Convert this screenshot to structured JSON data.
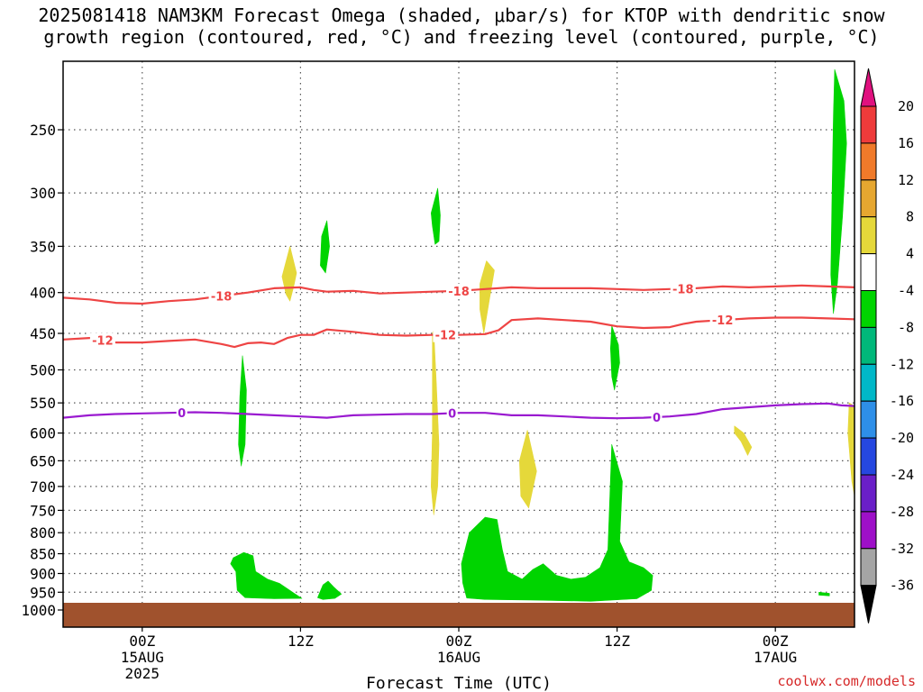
{
  "title_line1": "2025081418 NAM3KM Forecast Omega (shaded, μbar/s) for KTOP with dendritic snow",
  "title_line2": "growth region (contoured, red, °C) and freezing level (contoured, purple, °C)",
  "credit": "coolwx.com/models",
  "chart_data": {
    "type": "time-height cross section",
    "title": "2025081418 NAM3KM Forecast Omega (shaded, μbar/s) for KTOP with dendritic snow growth region (contoured, red, °C) and freezing level (contoured, purple, °C)",
    "xlabel": "Forecast Time (UTC)",
    "x_forecast_hours": [
      0,
      60
    ],
    "y_pressure_range": [
      1000,
      200
    ],
    "y_scale": "log-pressure",
    "grid": "dotted",
    "y_ticks": [
      250,
      300,
      350,
      400,
      450,
      500,
      550,
      600,
      650,
      700,
      750,
      800,
      850,
      900,
      950,
      1000
    ],
    "x_ticks": [
      {
        "hour": 6,
        "lines": [
          "00Z",
          "15AUG",
          "2025"
        ]
      },
      {
        "hour": 18,
        "lines": [
          "12Z"
        ]
      },
      {
        "hour": 30,
        "lines": [
          "00Z",
          "16AUG"
        ]
      },
      {
        "hour": 42,
        "lines": [
          "12Z"
        ]
      },
      {
        "hour": 54,
        "lines": [
          "00Z",
          "17AUG"
        ]
      }
    ],
    "colorbar": {
      "unit": "μbar/s",
      "labels": [
        "20",
        "16",
        "12",
        "8",
        "4",
        "-4",
        "-8",
        "-12",
        "-16",
        "-20",
        "-24",
        "-28",
        "-32",
        "-36"
      ],
      "colors": [
        "#e0117f",
        "#ee3b3b",
        "#f07a2a",
        "#e6a730",
        "#e5d83a",
        "#ffffff",
        "#00d400",
        "#00b87a",
        "#00b8c8",
        "#2e8fe8",
        "#2547e0",
        "#6a1fc8",
        "#9e10c8",
        "#a5a5a5",
        "#000000"
      ]
    },
    "contours": [
      {
        "label": "-18",
        "color": "#ee4444",
        "points": [
          [
            0,
            406
          ],
          [
            2,
            408
          ],
          [
            4,
            412
          ],
          [
            6,
            413
          ],
          [
            8,
            410
          ],
          [
            10,
            408
          ],
          [
            12,
            404
          ],
          [
            14,
            400
          ],
          [
            16,
            395
          ],
          [
            18,
            394
          ],
          [
            19,
            397
          ],
          [
            20,
            399
          ],
          [
            22,
            398
          ],
          [
            24,
            401
          ],
          [
            26,
            400
          ],
          [
            28,
            399
          ],
          [
            30,
            398
          ],
          [
            32,
            396
          ],
          [
            34,
            394
          ],
          [
            36,
            395
          ],
          [
            38,
            395
          ],
          [
            40,
            395
          ],
          [
            42,
            396
          ],
          [
            44,
            397
          ],
          [
            46,
            396
          ],
          [
            48,
            395
          ],
          [
            50,
            393
          ],
          [
            52,
            394
          ],
          [
            54,
            393
          ],
          [
            56,
            392
          ],
          [
            58,
            393
          ],
          [
            60,
            394
          ]
        ]
      },
      {
        "label": "-12",
        "color": "#ee4444",
        "points": [
          [
            0,
            458
          ],
          [
            2,
            456
          ],
          [
            4,
            462
          ],
          [
            6,
            462
          ],
          [
            8,
            460
          ],
          [
            10,
            458
          ],
          [
            12,
            464
          ],
          [
            13,
            468
          ],
          [
            14,
            463
          ],
          [
            15,
            462
          ],
          [
            16,
            464
          ],
          [
            17,
            456
          ],
          [
            18,
            452
          ],
          [
            19,
            452
          ],
          [
            20,
            445
          ],
          [
            22,
            448
          ],
          [
            24,
            452
          ],
          [
            26,
            453
          ],
          [
            28,
            452
          ],
          [
            30,
            452
          ],
          [
            32,
            451
          ],
          [
            33,
            446
          ],
          [
            34,
            433
          ],
          [
            36,
            431
          ],
          [
            38,
            433
          ],
          [
            40,
            435
          ],
          [
            42,
            441
          ],
          [
            44,
            443
          ],
          [
            46,
            442
          ],
          [
            47,
            438
          ],
          [
            48,
            435
          ],
          [
            50,
            433
          ],
          [
            52,
            431
          ],
          [
            54,
            430
          ],
          [
            56,
            430
          ],
          [
            58,
            431
          ],
          [
            60,
            432
          ]
        ]
      },
      {
        "label": "0",
        "color": "#9a1ad0",
        "points": [
          [
            0,
            574
          ],
          [
            2,
            570
          ],
          [
            4,
            568
          ],
          [
            6,
            567
          ],
          [
            8,
            566
          ],
          [
            10,
            565
          ],
          [
            12,
            566
          ],
          [
            14,
            568
          ],
          [
            16,
            570
          ],
          [
            18,
            572
          ],
          [
            20,
            574
          ],
          [
            22,
            570
          ],
          [
            24,
            569
          ],
          [
            26,
            568
          ],
          [
            28,
            568
          ],
          [
            30,
            566
          ],
          [
            32,
            566
          ],
          [
            34,
            570
          ],
          [
            36,
            570
          ],
          [
            38,
            572
          ],
          [
            40,
            574
          ],
          [
            42,
            575
          ],
          [
            44,
            574
          ],
          [
            46,
            572
          ],
          [
            48,
            568
          ],
          [
            50,
            560
          ],
          [
            52,
            557
          ],
          [
            54,
            554
          ],
          [
            56,
            552
          ],
          [
            58,
            551
          ],
          [
            59,
            554
          ],
          [
            60,
            555
          ]
        ]
      }
    ],
    "omega_regions": [
      {
        "color": "#00d400",
        "points": [
          [
            12.9,
            860
          ],
          [
            13.7,
            847
          ],
          [
            14.4,
            855
          ],
          [
            14.6,
            895
          ],
          [
            15.5,
            915
          ],
          [
            16.4,
            926
          ],
          [
            17.6,
            955
          ],
          [
            18.1,
            967
          ],
          [
            16.0,
            968
          ],
          [
            13.8,
            965
          ],
          [
            13.2,
            945
          ],
          [
            13.1,
            895
          ],
          [
            12.7,
            875
          ]
        ]
      },
      {
        "color": "#00d400",
        "points": [
          [
            19.3,
            965
          ],
          [
            19.7,
            930
          ],
          [
            20.1,
            920
          ],
          [
            20.5,
            935
          ],
          [
            21.1,
            955
          ],
          [
            20.6,
            967
          ],
          [
            19.7,
            970
          ]
        ]
      },
      {
        "color": "#00d400",
        "points": [
          [
            30.2,
            875
          ],
          [
            30.8,
            800
          ],
          [
            32.0,
            765
          ],
          [
            32.9,
            770
          ],
          [
            33.3,
            840
          ],
          [
            33.7,
            895
          ],
          [
            34.8,
            915
          ],
          [
            35.6,
            890
          ],
          [
            36.4,
            875
          ],
          [
            37.4,
            905
          ],
          [
            38.5,
            915
          ],
          [
            39.6,
            910
          ],
          [
            40.7,
            885
          ],
          [
            41.3,
            840
          ],
          [
            41.6,
            620
          ],
          [
            42.4,
            690
          ],
          [
            42.2,
            820
          ],
          [
            42.9,
            870
          ],
          [
            44.0,
            885
          ],
          [
            44.7,
            905
          ],
          [
            44.6,
            945
          ],
          [
            43.5,
            968
          ],
          [
            40.0,
            975
          ],
          [
            36.0,
            972
          ],
          [
            32.0,
            970
          ],
          [
            30.6,
            966
          ],
          [
            30.3,
            925
          ]
        ]
      },
      {
        "color": "#00d400",
        "points": [
          [
            13.6,
            480
          ],
          [
            13.9,
            530
          ],
          [
            13.8,
            620
          ],
          [
            13.5,
            660
          ],
          [
            13.3,
            620
          ],
          [
            13.4,
            540
          ]
        ]
      },
      {
        "color": "#00d400",
        "points": [
          [
            19.6,
            340
          ],
          [
            20.0,
            325
          ],
          [
            20.2,
            350
          ],
          [
            19.9,
            378
          ],
          [
            19.5,
            370
          ]
        ]
      },
      {
        "color": "#00d400",
        "points": [
          [
            27.9,
            318
          ],
          [
            28.4,
            296
          ],
          [
            28.6,
            320
          ],
          [
            28.5,
            345
          ],
          [
            28.2,
            348
          ],
          [
            28.0,
            330
          ]
        ]
      },
      {
        "color": "#00d400",
        "points": [
          [
            41.5,
            470
          ],
          [
            41.6,
            440
          ],
          [
            42.1,
            465
          ],
          [
            42.2,
            490
          ],
          [
            41.8,
            530
          ],
          [
            41.6,
            510
          ]
        ]
      },
      {
        "color": "#00d400",
        "points": [
          [
            58.5,
            210
          ],
          [
            59.2,
            230
          ],
          [
            59.4,
            260
          ],
          [
            59.1,
            320
          ],
          [
            58.7,
            390
          ],
          [
            58.4,
            425
          ],
          [
            58.2,
            380
          ],
          [
            58.3,
            300
          ],
          [
            58.4,
            240
          ]
        ]
      },
      {
        "color": "#00d400",
        "points": [
          [
            57.3,
            950
          ],
          [
            58.1,
            953
          ],
          [
            58.1,
            960
          ],
          [
            57.3,
            958
          ]
        ]
      },
      {
        "color": "#e5d83a",
        "points": [
          [
            16.6,
            382
          ],
          [
            17.2,
            350
          ],
          [
            17.7,
            378
          ],
          [
            17.5,
            392
          ],
          [
            17.2,
            410
          ],
          [
            16.9,
            402
          ]
        ]
      },
      {
        "color": "#e5d83a",
        "points": [
          [
            28.0,
            450
          ],
          [
            28.1,
            445
          ],
          [
            28.3,
            520
          ],
          [
            28.5,
            620
          ],
          [
            28.4,
            700
          ],
          [
            28.1,
            760
          ],
          [
            27.9,
            700
          ],
          [
            28.0,
            600
          ]
        ]
      },
      {
        "color": "#e5d83a",
        "points": [
          [
            31.6,
            390
          ],
          [
            32.1,
            365
          ],
          [
            32.7,
            375
          ],
          [
            32.3,
            410
          ],
          [
            31.9,
            450
          ],
          [
            31.6,
            420
          ]
        ]
      },
      {
        "color": "#e5d83a",
        "points": [
          [
            34.6,
            650
          ],
          [
            35.2,
            595
          ],
          [
            35.9,
            670
          ],
          [
            35.3,
            745
          ],
          [
            34.7,
            720
          ]
        ]
      },
      {
        "color": "#e5d83a",
        "points": [
          [
            50.9,
            588
          ],
          [
            51.6,
            600
          ],
          [
            52.2,
            625
          ],
          [
            51.9,
            640
          ],
          [
            51.4,
            615
          ],
          [
            50.9,
            600
          ]
        ]
      },
      {
        "color": "#e5d83a",
        "points": [
          [
            59.6,
            550
          ],
          [
            60,
            555
          ],
          [
            60,
            720
          ],
          [
            59.8,
            690
          ],
          [
            59.5,
            600
          ]
        ]
      }
    ]
  }
}
